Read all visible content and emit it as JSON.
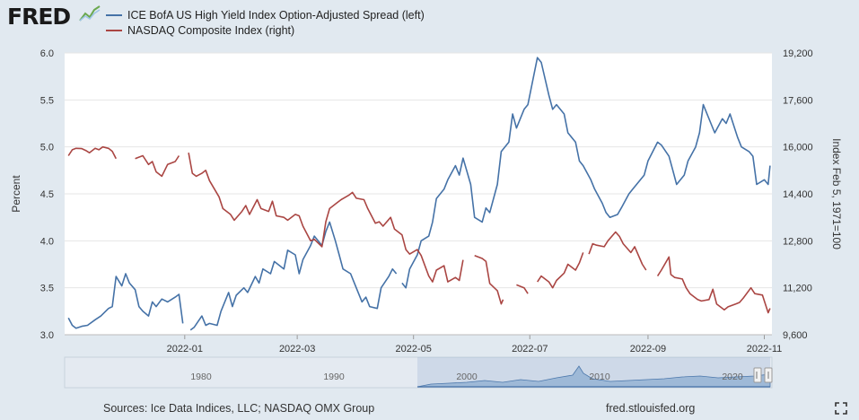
{
  "header": {
    "logo_text": "FRED",
    "legend": [
      {
        "label": "ICE BofA US High Yield Index Option-Adjusted Spread (left)",
        "color": "#4572a7"
      },
      {
        "label": "NASDAQ Composite Index (right)",
        "color": "#aa4643"
      }
    ]
  },
  "chart_data": {
    "type": "line",
    "title": "",
    "xlabel": "",
    "x_ticks": [
      "2022-01",
      "2022-03",
      "2022-05",
      "2022-07",
      "2022-09",
      "2022-11"
    ],
    "left_axis": {
      "label": "Percent",
      "range": [
        3.0,
        6.0
      ],
      "ticks": [
        "3.0",
        "3.5",
        "4.0",
        "4.5",
        "5.0",
        "5.5",
        "6.0"
      ]
    },
    "right_axis": {
      "label": "Index Feb 5, 1971=100",
      "range": [
        9600,
        19200
      ],
      "ticks": [
        "9,600",
        "11,200",
        "12,800",
        "14,400",
        "16,000",
        "17,600",
        "19,200"
      ]
    },
    "grid": true,
    "series": [
      {
        "name": "ICE BofA US High Yield Index Option-Adjusted Spread (left)",
        "axis": "left",
        "color": "#4572a7",
        "points": [
          [
            "2021-11-01",
            3.18
          ],
          [
            "2021-11-03",
            3.1
          ],
          [
            "2021-11-05",
            3.07
          ],
          [
            "2021-11-08",
            3.09
          ],
          [
            "2021-11-11",
            3.1
          ],
          [
            "2021-11-15",
            3.16
          ],
          [
            "2021-11-18",
            3.2
          ],
          [
            "2021-11-22",
            3.28
          ],
          [
            "2021-11-24",
            3.3
          ],
          [
            "2021-11-26",
            3.62
          ],
          [
            "2021-11-29",
            3.52
          ],
          [
            "2021-12-01",
            3.65
          ],
          [
            "2021-12-03",
            3.55
          ],
          [
            "2021-12-06",
            3.48
          ],
          [
            "2021-12-08",
            3.3
          ],
          [
            "2021-12-10",
            3.25
          ],
          [
            "2021-12-13",
            3.2
          ],
          [
            "2021-12-15",
            3.35
          ],
          [
            "2021-12-17",
            3.3
          ],
          [
            "2021-12-20",
            3.38
          ],
          [
            "2021-12-23",
            3.35
          ],
          [
            "2021-12-27",
            3.4
          ],
          [
            "2021-12-29",
            3.43
          ],
          [
            "2021-12-31",
            3.12
          ],
          null,
          [
            "2022-01-04",
            3.05
          ],
          [
            "2022-01-06",
            3.08
          ],
          [
            "2022-01-10",
            3.2
          ],
          [
            "2022-01-12",
            3.1
          ],
          [
            "2022-01-14",
            3.12
          ],
          [
            "2022-01-18",
            3.1
          ],
          [
            "2022-01-20",
            3.25
          ],
          [
            "2022-01-24",
            3.45
          ],
          [
            "2022-01-26",
            3.3
          ],
          [
            "2022-01-28",
            3.42
          ],
          [
            "2022-02-01",
            3.5
          ],
          [
            "2022-02-03",
            3.45
          ],
          [
            "2022-02-07",
            3.62
          ],
          [
            "2022-02-09",
            3.55
          ],
          [
            "2022-02-11",
            3.7
          ],
          [
            "2022-02-15",
            3.65
          ],
          [
            "2022-02-17",
            3.78
          ],
          [
            "2022-02-22",
            3.7
          ],
          [
            "2022-02-24",
            3.9
          ],
          [
            "2022-02-28",
            3.85
          ],
          [
            "2022-03-02",
            3.65
          ],
          [
            "2022-03-04",
            3.8
          ],
          [
            "2022-03-08",
            3.95
          ],
          [
            "2022-03-10",
            4.05
          ],
          [
            "2022-03-14",
            3.95
          ],
          [
            "2022-03-16",
            4.1
          ],
          [
            "2022-03-18",
            4.2
          ],
          [
            "2022-03-21",
            4.0
          ],
          [
            "2022-03-23",
            3.85
          ],
          [
            "2022-03-25",
            3.7
          ],
          [
            "2022-03-29",
            3.65
          ],
          [
            "2022-03-31",
            3.55
          ],
          [
            "2022-04-04",
            3.35
          ],
          [
            "2022-04-06",
            3.4
          ],
          [
            "2022-04-08",
            3.3
          ],
          [
            "2022-04-12",
            3.28
          ],
          [
            "2022-04-14",
            3.5
          ],
          [
            "2022-04-18",
            3.62
          ],
          [
            "2022-04-20",
            3.7
          ],
          [
            "2022-04-22",
            3.65
          ],
          null,
          [
            "2022-04-25",
            3.55
          ],
          [
            "2022-04-27",
            3.5
          ],
          [
            "2022-04-29",
            3.7
          ],
          [
            "2022-05-03",
            3.85
          ],
          [
            "2022-05-05",
            4.0
          ],
          [
            "2022-05-09",
            4.05
          ],
          [
            "2022-05-11",
            4.2
          ],
          [
            "2022-05-13",
            4.45
          ],
          [
            "2022-05-17",
            4.55
          ],
          [
            "2022-05-19",
            4.65
          ],
          [
            "2022-05-23",
            4.8
          ],
          [
            "2022-05-25",
            4.7
          ],
          [
            "2022-05-27",
            4.88
          ],
          [
            "2022-05-31",
            4.6
          ],
          [
            "2022-06-02",
            4.25
          ],
          [
            "2022-06-06",
            4.2
          ],
          [
            "2022-06-08",
            4.35
          ],
          [
            "2022-06-10",
            4.3
          ],
          [
            "2022-06-14",
            4.6
          ],
          [
            "2022-06-16",
            4.95
          ],
          [
            "2022-06-20",
            5.05
          ],
          [
            "2022-06-22",
            5.35
          ],
          [
            "2022-06-24",
            5.2
          ],
          [
            "2022-06-28",
            5.4
          ],
          [
            "2022-06-30",
            5.45
          ],
          [
            "2022-07-05",
            5.95
          ],
          [
            "2022-07-07",
            5.9
          ],
          [
            "2022-07-11",
            5.55
          ],
          [
            "2022-07-13",
            5.4
          ],
          [
            "2022-07-15",
            5.45
          ],
          [
            "2022-07-19",
            5.35
          ],
          [
            "2022-07-21",
            5.15
          ],
          [
            "2022-07-25",
            5.05
          ],
          [
            "2022-07-27",
            4.85
          ],
          [
            "2022-07-29",
            4.8
          ],
          [
            "2022-08-02",
            4.65
          ],
          [
            "2022-08-04",
            4.55
          ],
          [
            "2022-08-08",
            4.4
          ],
          [
            "2022-08-10",
            4.3
          ],
          [
            "2022-08-12",
            4.25
          ],
          [
            "2022-08-16",
            4.28
          ],
          [
            "2022-08-18",
            4.35
          ],
          [
            "2022-08-22",
            4.5
          ],
          [
            "2022-08-24",
            4.55
          ],
          [
            "2022-08-26",
            4.6
          ],
          [
            "2022-08-30",
            4.7
          ],
          [
            "2022-09-01",
            4.85
          ],
          [
            "2022-09-06",
            5.05
          ],
          [
            "2022-09-08",
            5.02
          ],
          [
            "2022-09-12",
            4.9
          ],
          [
            "2022-09-14",
            4.75
          ],
          [
            "2022-09-16",
            4.6
          ],
          [
            "2022-09-20",
            4.7
          ],
          [
            "2022-09-22",
            4.85
          ],
          [
            "2022-09-26",
            5.0
          ],
          [
            "2022-09-28",
            5.15
          ],
          [
            "2022-09-30",
            5.45
          ],
          [
            "2022-10-04",
            5.25
          ],
          [
            "2022-10-06",
            5.15
          ],
          [
            "2022-10-10",
            5.3
          ],
          [
            "2022-10-12",
            5.25
          ],
          [
            "2022-10-14",
            5.35
          ],
          [
            "2022-10-18",
            5.1
          ],
          [
            "2022-10-20",
            5.0
          ],
          [
            "2022-10-24",
            4.95
          ],
          [
            "2022-10-26",
            4.9
          ],
          [
            "2022-10-28",
            4.6
          ],
          [
            "2022-11-01",
            4.65
          ],
          [
            "2022-11-03",
            4.6
          ],
          [
            "2022-11-04",
            4.8
          ]
        ]
      },
      {
        "name": "NASDAQ Composite Index (right)",
        "axis": "right",
        "color": "#aa4643",
        "points": [
          [
            "2021-11-01",
            15700
          ],
          [
            "2021-11-03",
            15900
          ],
          [
            "2021-11-05",
            15950
          ],
          [
            "2021-11-08",
            15940
          ],
          [
            "2021-11-10",
            15880
          ],
          [
            "2021-11-12",
            15800
          ],
          [
            "2021-11-15",
            15950
          ],
          [
            "2021-11-17",
            15900
          ],
          [
            "2021-11-19",
            16000
          ],
          [
            "2021-11-22",
            15950
          ],
          [
            "2021-11-24",
            15850
          ],
          [
            "2021-11-26",
            15600
          ],
          null,
          [
            "2021-12-06",
            15600
          ],
          [
            "2021-12-08",
            15650
          ],
          [
            "2021-12-10",
            15700
          ],
          [
            "2021-12-13",
            15400
          ],
          [
            "2021-12-15",
            15500
          ],
          [
            "2021-12-17",
            15150
          ],
          [
            "2021-12-20",
            15000
          ],
          [
            "2021-12-23",
            15400
          ],
          [
            "2021-12-27",
            15500
          ],
          [
            "2021-12-29",
            15700
          ],
          null,
          [
            "2022-01-03",
            15800
          ],
          [
            "2022-01-05",
            15100
          ],
          [
            "2022-01-07",
            15000
          ],
          [
            "2022-01-10",
            15100
          ],
          [
            "2022-01-12",
            15200
          ],
          [
            "2022-01-14",
            14850
          ],
          [
            "2022-01-19",
            14300
          ],
          [
            "2022-01-21",
            13900
          ],
          [
            "2022-01-25",
            13700
          ],
          [
            "2022-01-27",
            13500
          ],
          [
            "2022-01-31",
            13800
          ],
          [
            "2022-02-02",
            14000
          ],
          [
            "2022-02-04",
            13700
          ],
          [
            "2022-02-08",
            14200
          ],
          [
            "2022-02-10",
            13900
          ],
          [
            "2022-02-14",
            13800
          ],
          [
            "2022-02-16",
            14150
          ],
          [
            "2022-02-18",
            13650
          ],
          [
            "2022-02-22",
            13600
          ],
          [
            "2022-02-24",
            13500
          ],
          [
            "2022-02-28",
            13700
          ],
          [
            "2022-03-02",
            13650
          ],
          [
            "2022-03-04",
            13300
          ],
          [
            "2022-03-08",
            12800
          ],
          [
            "2022-03-10",
            12850
          ],
          [
            "2022-03-14",
            12600
          ],
          [
            "2022-03-16",
            13450
          ],
          [
            "2022-03-18",
            13900
          ],
          [
            "2022-03-22",
            14100
          ],
          [
            "2022-03-24",
            14200
          ],
          [
            "2022-03-28",
            14350
          ],
          [
            "2022-03-30",
            14450
          ],
          [
            "2022-04-01",
            14250
          ],
          [
            "2022-04-05",
            14200
          ],
          [
            "2022-04-07",
            13900
          ],
          [
            "2022-04-11",
            13400
          ],
          [
            "2022-04-13",
            13450
          ],
          [
            "2022-04-15",
            13300
          ],
          [
            "2022-04-19",
            13600
          ],
          [
            "2022-04-21",
            13200
          ],
          [
            "2022-04-25",
            13000
          ],
          [
            "2022-04-27",
            12500
          ],
          [
            "2022-04-29",
            12350
          ],
          [
            "2022-05-03",
            12500
          ],
          [
            "2022-05-05",
            12300
          ],
          [
            "2022-05-09",
            11600
          ],
          [
            "2022-05-11",
            11400
          ],
          [
            "2022-05-13",
            11800
          ],
          [
            "2022-05-17",
            11950
          ],
          [
            "2022-05-19",
            11400
          ],
          [
            "2022-05-23",
            11550
          ],
          [
            "2022-05-25",
            11450
          ],
          [
            "2022-05-27",
            12150
          ],
          null,
          [
            "2022-06-02",
            12300
          ],
          [
            "2022-06-06",
            12200
          ],
          [
            "2022-06-08",
            12100
          ],
          [
            "2022-06-10",
            11350
          ],
          [
            "2022-06-14",
            11100
          ],
          [
            "2022-06-16",
            10650
          ],
          [
            "2022-06-17",
            10800
          ],
          null,
          [
            "2022-06-24",
            11300
          ],
          [
            "2022-06-28",
            11200
          ],
          [
            "2022-06-30",
            11000
          ],
          null,
          [
            "2022-07-05",
            11400
          ],
          [
            "2022-07-07",
            11600
          ],
          [
            "2022-07-11",
            11400
          ],
          [
            "2022-07-13",
            11200
          ],
          [
            "2022-07-15",
            11450
          ],
          [
            "2022-07-19",
            11700
          ],
          [
            "2022-07-21",
            12000
          ],
          [
            "2022-07-25",
            11800
          ],
          [
            "2022-07-27",
            12050
          ],
          [
            "2022-07-29",
            12400
          ],
          null,
          [
            "2022-08-01",
            12350
          ],
          [
            "2022-08-03",
            12700
          ],
          [
            "2022-08-05",
            12650
          ],
          [
            "2022-08-09",
            12600
          ],
          [
            "2022-08-11",
            12800
          ],
          [
            "2022-08-15",
            13100
          ],
          [
            "2022-08-17",
            12950
          ],
          [
            "2022-08-19",
            12700
          ],
          [
            "2022-08-23",
            12400
          ],
          [
            "2022-08-25",
            12600
          ],
          [
            "2022-08-29",
            12000
          ],
          [
            "2022-08-31",
            11800
          ],
          null,
          [
            "2022-09-06",
            11600
          ],
          [
            "2022-09-08",
            11800
          ],
          [
            "2022-09-12",
            12250
          ],
          [
            "2022-09-13",
            11650
          ],
          [
            "2022-09-15",
            11550
          ],
          [
            "2022-09-19",
            11500
          ],
          [
            "2022-09-21",
            11200
          ],
          [
            "2022-09-23",
            11000
          ],
          [
            "2022-09-27",
            10800
          ],
          [
            "2022-09-29",
            10750
          ],
          [
            "2022-10-03",
            10800
          ],
          [
            "2022-10-05",
            11150
          ],
          [
            "2022-10-07",
            10650
          ],
          [
            "2022-10-11",
            10450
          ],
          [
            "2022-10-13",
            10550
          ],
          [
            "2022-10-17",
            10650
          ],
          [
            "2022-10-19",
            10700
          ],
          [
            "2022-10-21",
            10850
          ],
          [
            "2022-10-25",
            11200
          ],
          [
            "2022-10-27",
            11000
          ],
          [
            "2022-10-31",
            10950
          ],
          [
            "2022-11-03",
            10350
          ],
          [
            "2022-11-04",
            10500
          ]
        ]
      }
    ]
  },
  "navigator": {
    "years": [
      "1980",
      "1990",
      "2000",
      "2010",
      "2020"
    ]
  },
  "footer": {
    "sources": "Sources: Ice Data Indices, LLC; NASDAQ OMX Group",
    "site": "fred.stlouisfed.org"
  }
}
